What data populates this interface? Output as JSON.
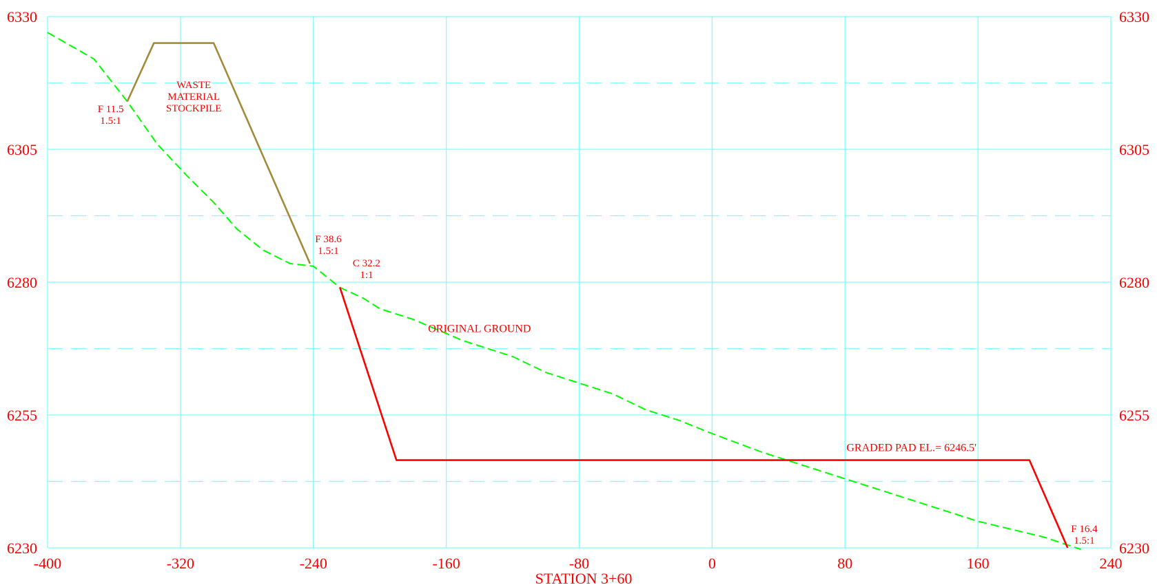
{
  "chart_data": {
    "type": "line",
    "title": "",
    "xlabel": "STATION 3+60",
    "ylabel": "",
    "xlim": [
      -400,
      240
    ],
    "ylim": [
      6230,
      6330
    ],
    "grid": true,
    "x_ticks": [
      -400,
      -320,
      -240,
      -160,
      -80,
      0,
      80,
      160,
      240
    ],
    "y_ticks": [
      6230,
      6255,
      6280,
      6305,
      6330
    ],
    "y_minor_grid": [
      6242.5,
      6267.5,
      6292.5,
      6317.5
    ],
    "colors": {
      "grid": "#7fffff",
      "original_ground": "#00ff00",
      "pad_section": "#ff0000",
      "stockpile": "#a38a3a",
      "text": "#ff0000"
    },
    "series": [
      {
        "key": "original_ground",
        "name": "ORIGINAL GROUND",
        "style": "dashed",
        "points": [
          [
            -400,
            6327
          ],
          [
            -372,
            6322
          ],
          [
            -352,
            6314
          ],
          [
            -334,
            6306
          ],
          [
            -316,
            6300
          ],
          [
            -300,
            6295
          ],
          [
            -286,
            6290
          ],
          [
            -270,
            6286
          ],
          [
            -254,
            6283.5
          ],
          [
            -240,
            6283
          ],
          [
            -224,
            6279
          ],
          [
            -210,
            6277
          ],
          [
            -200,
            6275
          ],
          [
            -180,
            6273
          ],
          [
            -150,
            6269
          ],
          [
            -120,
            6266
          ],
          [
            -100,
            6263
          ],
          [
            -80,
            6261
          ],
          [
            -60,
            6259
          ],
          [
            -40,
            6256
          ],
          [
            -20,
            6254
          ],
          [
            0,
            6251.5
          ],
          [
            30,
            6248
          ],
          [
            60,
            6245
          ],
          [
            90,
            6242
          ],
          [
            120,
            6239
          ],
          [
            160,
            6235
          ],
          [
            200,
            6232
          ],
          [
            222,
            6229.7
          ]
        ]
      },
      {
        "key": "pad_section",
        "name": "",
        "style": "solid",
        "points": [
          [
            -224,
            6279
          ],
          [
            -190,
            6246.5
          ],
          [
            191,
            6246.5
          ],
          [
            214,
            6230
          ]
        ]
      },
      {
        "key": "stockpile",
        "name": "",
        "style": "solid",
        "points": [
          [
            -352,
            6314
          ],
          [
            -336,
            6325
          ],
          [
            -300,
            6325
          ],
          [
            -242,
            6283.5
          ]
        ]
      }
    ],
    "annotations": {
      "waste_material": {
        "lines": [
          "WASTE",
          "MATERIAL",
          "STOCKPILE"
        ],
        "x": -312,
        "y": 6316.5
      },
      "f_11_5": {
        "lines": [
          "F 11.5",
          "1.5:1"
        ],
        "x": -362,
        "y": 6312
      },
      "f_38_6": {
        "lines": [
          "F 38.6",
          "1.5:1"
        ],
        "x": -231,
        "y": 6287.5
      },
      "c_32_2": {
        "lines": [
          "C 32.2",
          "1:1"
        ],
        "x": -208,
        "y": 6283
      },
      "original_ground": {
        "lines": [
          "ORIGINAL GROUND"
        ],
        "x": -140,
        "y": 6270.6
      },
      "graded_pad": {
        "lines": [
          "GRADED PAD EL.= 6246.5'"
        ],
        "x": 120,
        "y": 6248.2
      },
      "f_16_4": {
        "lines": [
          "F 16.4",
          "1.5:1"
        ],
        "x": 224,
        "y": 6233
      }
    }
  }
}
